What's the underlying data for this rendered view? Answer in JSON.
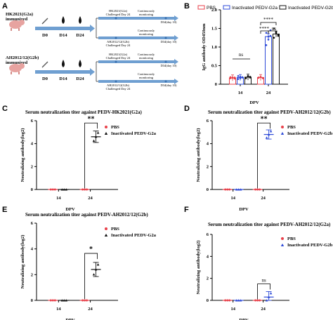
{
  "panels": {
    "A": "A",
    "B": "B",
    "C": "C",
    "D": "D",
    "E": "E",
    "F": "F"
  },
  "schematic": {
    "rows": [
      {
        "group": "HK2021(G2a)\nimmunized",
        "days": [
          "D0",
          "D14",
          "D24"
        ],
        "challenge_g2a": "HK2021(G2a)\nChallenged Day 24",
        "challenge_g2b": "AH2012/12(G2b)\nChallenged Day 24",
        "monitoring": "Continuously\nmonitoring",
        "end": "D34(day 10)"
      },
      {
        "group": "AH2012/12(G2b)\nimmunized",
        "days": [
          "D0",
          "D14",
          "D24"
        ],
        "challenge_g2a": "HK2021(G2a)\nChallenged Day 24",
        "challenge_g2b": "AH2012/12(G2b)\nChallenged Day 24",
        "monitoring": "Continuously\nmonitoring",
        "end": "D34(day 10)"
      }
    ],
    "colors": {
      "arrow": "#6f9fd1",
      "arrow_dark": "#3c72b0",
      "drop": "#111111"
    }
  },
  "chart_data": [
    {
      "panel": "B",
      "type": "bar",
      "title": "",
      "xlabel": "DPV",
      "ylabel": "IgG antibody OD450nm",
      "categories": [
        "14",
        "24"
      ],
      "ylim": [
        0,
        2
      ],
      "yticks": [
        "0",
        "0.5",
        "1.0",
        "1.5",
        "2.0"
      ],
      "series": [
        {
          "name": "PBS",
          "color": "#e8414b",
          "values": [
            0.17,
            0.18
          ],
          "points": [
            [
              0.16,
              0.18,
              0.15,
              0.19,
              0.17,
              0.18
            ],
            [
              0.17,
              0.19,
              0.16,
              0.18,
              0.2,
              0.17
            ]
          ]
        },
        {
          "name": "Inactivated PEDV-G2a",
          "color": "#2e4bd8",
          "values": [
            0.18,
            1.28
          ],
          "points": [
            [
              0.14,
              0.2,
              0.18,
              0.22,
              0.16,
              0.19
            ],
            [
              1.05,
              1.2,
              1.3,
              1.38,
              1.28,
              1.45
            ]
          ]
        },
        {
          "name": "Inactivated PEDV-G2b",
          "color": "#111111",
          "values": [
            0.19,
            1.35
          ],
          "points": [
            [
              0.16,
              0.22,
              0.2,
              0.17,
              0.21,
              0.18
            ],
            [
              1.25,
              1.4,
              1.3,
              1.5,
              1.38,
              1.33
            ]
          ]
        }
      ],
      "legend": "top",
      "annotations": {
        "ns": "ns",
        "sig1": "****",
        "sig2": "****",
        "ns2": "ns"
      }
    },
    {
      "panel": "C",
      "type": "scatter",
      "title": "Serum neutralization titer against PEDV-HK2021(G2a)",
      "xlabel": "DPV",
      "ylabel": "Neutralizing antibody(log2)",
      "categories": [
        "14",
        "24"
      ],
      "ylim": [
        0,
        6
      ],
      "yticks": [
        "0",
        "2",
        "4",
        "6"
      ],
      "series": [
        {
          "name": "PBS",
          "color": "#e8414b",
          "marker": "circle",
          "means": [
            0,
            0
          ],
          "sd": [
            0,
            0
          ]
        },
        {
          "name": "Inactivated PEDV-G2a",
          "color": "#111111",
          "marker": "triangle",
          "means": [
            0,
            4.6
          ],
          "sd": [
            0,
            0.5
          ]
        }
      ],
      "sig": "**",
      "legend": "top-right"
    },
    {
      "panel": "D",
      "type": "scatter",
      "title": "Serum neutralization titer against PEDV-AH2012/12(G2b)",
      "xlabel": "DPV",
      "ylabel": "Neutralizing antibody(log2)",
      "categories": [
        "14",
        "24"
      ],
      "ylim": [
        0,
        6
      ],
      "yticks": [
        "0",
        "2",
        "4",
        "6"
      ],
      "series": [
        {
          "name": "PBS",
          "color": "#e8414b",
          "marker": "circle",
          "means": [
            0,
            0
          ],
          "sd": [
            0,
            0
          ]
        },
        {
          "name": "Inactivated PEDV-G2b",
          "color": "#2e4bd8",
          "marker": "triangle",
          "means": [
            0,
            4.8
          ],
          "sd": [
            0,
            0.4
          ]
        }
      ],
      "sig": "**",
      "legend": "top-right"
    },
    {
      "panel": "E",
      "type": "scatter",
      "title": "Serum neutralization titer against PEDV-AH2012/12(G2b)",
      "xlabel": "DPV",
      "ylabel": "Neutralizing antibody(log2)",
      "categories": [
        "14",
        "24"
      ],
      "ylim": [
        0,
        6
      ],
      "yticks": [
        "0",
        "2",
        "4",
        "6"
      ],
      "series": [
        {
          "name": "PBS",
          "color": "#e8414b",
          "marker": "circle",
          "means": [
            0,
            0
          ],
          "sd": [
            0,
            0
          ]
        },
        {
          "name": "Inactivated PEDV-G2a",
          "color": "#111111",
          "marker": "triangle",
          "means": [
            0,
            2.4
          ],
          "sd": [
            0,
            0.55
          ]
        }
      ],
      "sig": "*",
      "legend": "top-right"
    },
    {
      "panel": "F",
      "type": "scatter",
      "title": "Serum neutralization titer against PEDV-AH2012/12(G2a)",
      "xlabel": "DPV",
      "ylabel": "Neutralizing antibody(log2)",
      "categories": [
        "14",
        "24"
      ],
      "ylim": [
        0,
        6
      ],
      "yticks": [
        "0",
        "2",
        "4",
        "6"
      ],
      "series": [
        {
          "name": "PBS",
          "color": "#e8414b",
          "marker": "circle",
          "means": [
            0,
            0
          ],
          "sd": [
            0,
            0
          ]
        },
        {
          "name": "Inactivated PEDV-G2b",
          "color": "#2e4bd8",
          "marker": "triangle",
          "means": [
            0,
            0.3
          ],
          "sd": [
            0,
            0.5
          ]
        }
      ],
      "sig": "ns",
      "legend": "top-right"
    }
  ]
}
